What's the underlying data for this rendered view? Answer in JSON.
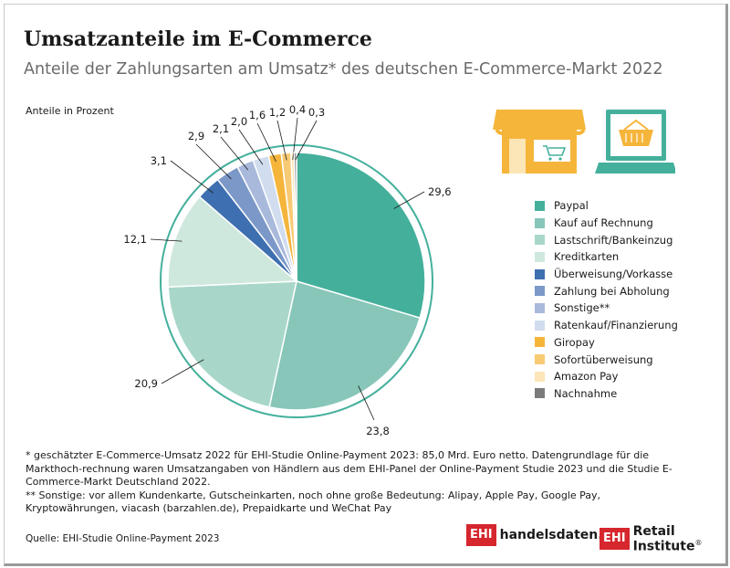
{
  "header": {
    "title": "Umsatzanteile im E-Commerce",
    "subtitle": "Anteile der Zahlungsarten am Umsatz* des deutschen E-Commerce-Markt 2022",
    "unit_label": "Anteile in Prozent"
  },
  "chart_data": {
    "type": "pie",
    "unit": "%",
    "categories": [
      "Paypal",
      "Kauf auf Rechnung",
      "Lastschrift/Bankeinzug",
      "Kreditkarten",
      "Überweisung/Vorkasse",
      "Zahlung bei Abholung",
      "Sonstige**",
      "Ratenkauf/Finanzierung",
      "Giropay",
      "Sofortüberweisung",
      "Amazon Pay",
      "Nachnahme"
    ],
    "values": [
      29.6,
      23.8,
      20.9,
      12.1,
      3.1,
      2.9,
      2.1,
      2.0,
      1.6,
      1.2,
      0.4,
      0.3
    ],
    "value_labels": [
      "29,6",
      "23,8",
      "20,9",
      "12,1",
      "3,1",
      "2,9",
      "2,1",
      "2,0",
      "1,6",
      "1,2",
      "0,4",
      "0,3"
    ],
    "colors": [
      "#44b09c",
      "#87c6b9",
      "#a8d7c9",
      "#cfe8dd",
      "#3e6fb0",
      "#7b98c8",
      "#a9b9dc",
      "#d1dcef",
      "#f5b53b",
      "#f8ca74",
      "#fce6b7",
      "#7b7b7b"
    ],
    "legend_position": "right"
  },
  "icons": [
    "shop-icon",
    "online-shop-laptop-icon"
  ],
  "footnotes": {
    "note1": "* geschätzter E-Commerce-Umsatz 2022 für EHI-Studie Online-Payment 2023: 85,0 Mrd. Euro netto. Datengrundlage für die Markthoch-rechnung waren Umsatzangaben von Händlern aus dem EHI-Panel der Online-Payment Studie 2023 und die Studie E-Commerce-Markt Deutschland 2022.",
    "note2": "** Sonstige: vor allem Kundenkarte, Gutscheinkarten, noch ohne große Bedeutung: Alipay, Apple Pay, Google Pay, Kryptowährungen, viacash (barzahlen.de), Prepaidkarte und WeChat Pay"
  },
  "source": "Quelle: EHI-Studie Online-Payment 2023",
  "logos": {
    "logo1_box": "EHI",
    "logo1_text": "handelsdaten.de",
    "logo2_box": "EHI",
    "logo2_text": "Retail Institute",
    "logo2_reg": "®"
  }
}
